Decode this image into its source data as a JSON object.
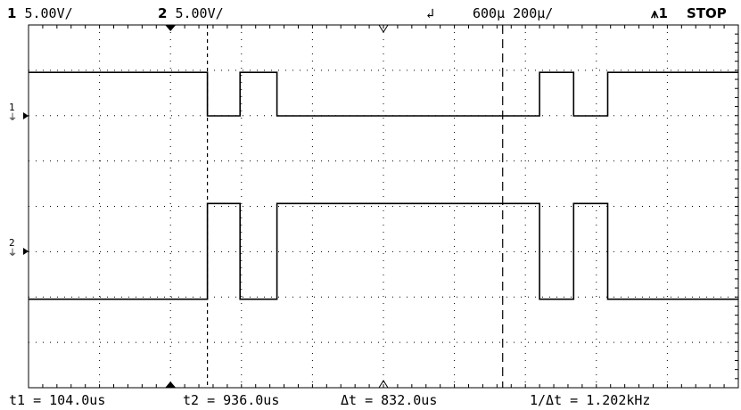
{
  "status_bar": {
    "ch1_number": "1",
    "ch1_scale": "5.00V/",
    "ch2_number": "2",
    "ch2_scale": "5.00V/",
    "trigger_icon": "trigger-edge-icon",
    "time_delay": "600µ 200µ/",
    "trigger_source": "1",
    "run_state": "STOP"
  },
  "channel_markers": {
    "ch1_label": "1",
    "ch2_label": "2"
  },
  "measurements": {
    "t1": "t1 = 104.0us",
    "t2": "t2 = 936.0us",
    "delta_t": "Δt = 832.0us",
    "inv_delta_t": "1/Δt = 1.202kHz"
  },
  "chart_data": {
    "type": "line",
    "x_unit": "us",
    "x_range": [
      -400,
      1600
    ],
    "series": [
      {
        "channel": "1",
        "volts_per_div": 5.0,
        "points": [
          [
            -400,
            2
          ],
          [
            104,
            2
          ],
          [
            104,
            0
          ],
          [
            196,
            0
          ],
          [
            196,
            2
          ],
          [
            300,
            2
          ],
          [
            300,
            0
          ],
          [
            1040,
            0
          ],
          [
            1040,
            2
          ],
          [
            1136,
            2
          ],
          [
            1136,
            0
          ],
          [
            1232,
            0
          ],
          [
            1232,
            2
          ],
          [
            1600,
            2
          ]
        ]
      },
      {
        "channel": "2",
        "volts_per_div": 5.0,
        "points": [
          [
            -400,
            -2.2
          ],
          [
            104,
            -2.2
          ],
          [
            104,
            2.2
          ],
          [
            196,
            2.2
          ],
          [
            196,
            -2.2
          ],
          [
            300,
            -2.2
          ],
          [
            300,
            2.2
          ],
          [
            1040,
            2.2
          ],
          [
            1040,
            -2.2
          ],
          [
            1136,
            -2.2
          ],
          [
            1136,
            2.2
          ],
          [
            1232,
            2.2
          ],
          [
            1232,
            -2.2
          ],
          [
            1600,
            -2.2
          ]
        ]
      }
    ],
    "cursors": [
      {
        "name": "t1",
        "time_us": 104.0
      },
      {
        "name": "t2",
        "time_us": 936.0
      }
    ],
    "grid": true
  }
}
